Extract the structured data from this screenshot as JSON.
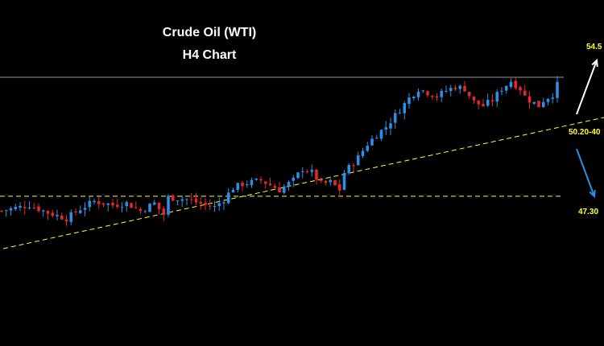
{
  "chart_data": {
    "type": "candlestick",
    "title": "Crude Oil (WTI)",
    "subtitle": "H4 Chart",
    "levels": [
      {
        "label": "54.5",
        "value": 54.5,
        "color": "#ffff33"
      },
      {
        "label": "50.20-40",
        "value": 50.3,
        "color": "#ffff33"
      },
      {
        "label": "47.30",
        "value": 47.3,
        "color": "#ffff33"
      }
    ],
    "resistance_line": {
      "value": 54.0,
      "color": "#8a9ab0"
    },
    "support_horizontal": {
      "value": 47.3,
      "color": "#ffff33",
      "style": "dashed"
    },
    "trendline": {
      "color": "#ffff33",
      "style": "dashed"
    },
    "colors": {
      "up": "#2a8fe6",
      "down": "#e8252b",
      "background": "#000000",
      "up_arrow": "#ffffff",
      "down_arrow": "#2a8fe6"
    },
    "series": [
      {
        "name": "",
        "type": "ohlc",
        "anchors": [
          [
            0,
            47.0
          ],
          [
            6,
            47.3
          ],
          [
            10,
            46.9
          ],
          [
            14,
            46.6
          ],
          [
            17,
            47.1
          ],
          [
            20,
            47.5
          ],
          [
            24,
            47.3
          ],
          [
            27,
            47.4
          ],
          [
            30,
            47.0
          ],
          [
            33,
            47.4
          ],
          [
            35,
            46.8
          ],
          [
            36,
            47.7
          ],
          [
            40,
            47.6
          ],
          [
            44,
            47.3
          ],
          [
            46,
            47.2
          ],
          [
            48,
            47.6
          ],
          [
            50,
            48.2
          ],
          [
            52,
            48.4
          ],
          [
            56,
            48.6
          ],
          [
            60,
            48.1
          ],
          [
            63,
            48.6
          ],
          [
            65,
            49.2
          ],
          [
            67,
            49.0
          ],
          [
            69,
            48.4
          ],
          [
            71,
            48.5
          ],
          [
            73,
            48.1
          ],
          [
            74,
            49.0
          ],
          [
            77,
            49.8
          ],
          [
            79,
            50.5
          ],
          [
            81,
            51.0
          ],
          [
            83,
            51.4
          ],
          [
            85,
            52.0
          ],
          [
            86,
            52.3
          ],
          [
            88,
            52.9
          ],
          [
            90,
            53.4
          ],
          [
            92,
            53.2
          ],
          [
            94,
            53.0
          ],
          [
            96,
            53.3
          ],
          [
            98,
            53.5
          ],
          [
            100,
            53.4
          ],
          [
            102,
            52.7
          ],
          [
            104,
            52.5
          ],
          [
            106,
            52.8
          ],
          [
            108,
            53.4
          ],
          [
            110,
            53.8
          ],
          [
            112,
            53.4
          ],
          [
            113,
            53.0
          ],
          [
            114,
            52.8
          ],
          [
            116,
            52.5
          ],
          [
            117,
            52.8
          ],
          [
            119,
            53.1
          ],
          [
            120,
            53.6
          ]
        ]
      }
    ]
  }
}
